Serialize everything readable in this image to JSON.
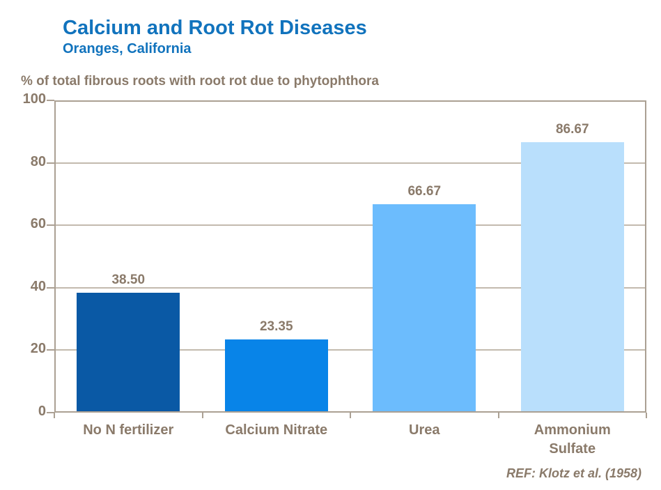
{
  "colors": {
    "background": "#FFFFFF",
    "title_blue": "#1173BD",
    "text_brown": "#8A7A6A",
    "gridline": "#C3BAAE",
    "axis_line": "#ABA093"
  },
  "chart_data": {
    "type": "bar",
    "title": "Calcium and Root Rot Diseases",
    "subtitle": "Oranges, California",
    "ylabel": "% of total fibrous roots with root rot due to phytophthora",
    "xlabel": "",
    "categories": [
      "No N fertilizer",
      "Calcium Nitrate",
      "Urea",
      "Ammonium Sulfate"
    ],
    "categories_display": [
      [
        "No N fertilizer"
      ],
      [
        "Calcium Nitrate"
      ],
      [
        "Urea"
      ],
      [
        "Ammonium",
        "Sulfate"
      ]
    ],
    "values": [
      38.5,
      23.35,
      66.67,
      86.67
    ],
    "value_labels": [
      "38.50",
      "23.35",
      "66.67",
      "86.67"
    ],
    "bar_colors": [
      "#0A59A5",
      "#0884E8",
      "#6CBCFD",
      "#B9DFFC"
    ],
    "ylim": [
      0,
      100
    ],
    "yticks": [
      0,
      20,
      40,
      60,
      80,
      100
    ],
    "grid": true,
    "legend_position": "none",
    "reference": "REF: Klotz et al. (1958)"
  }
}
